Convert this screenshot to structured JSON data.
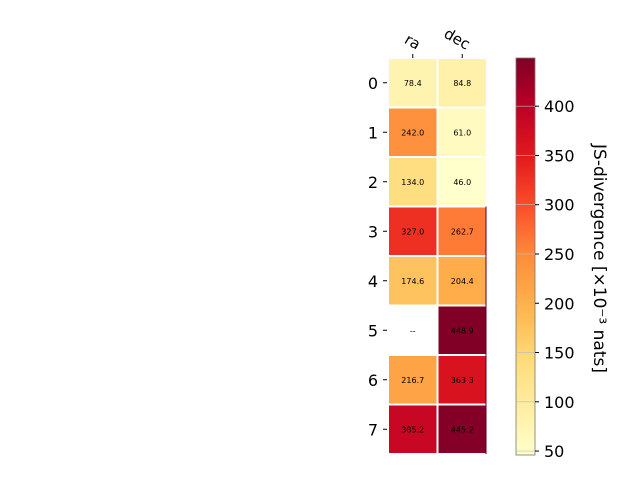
{
  "chart_data": {
    "type": "heatmap",
    "columns": [
      "ra",
      "dec"
    ],
    "rows": [
      "0",
      "1",
      "2",
      "3",
      "4",
      "5",
      "6",
      "7"
    ],
    "values": [
      [
        78.4,
        84.8
      ],
      [
        242.0,
        61.0
      ],
      [
        134.0,
        46.0
      ],
      [
        327.0,
        262.7
      ],
      [
        174.6,
        204.4
      ],
      [
        null,
        448.9
      ],
      [
        216.7,
        363.3
      ],
      [
        385.2,
        445.2
      ]
    ],
    "cell_labels": [
      [
        "78.4",
        "84.8"
      ],
      [
        "242.0",
        "61.0"
      ],
      [
        "134.0",
        "46.0"
      ],
      [
        "327.0",
        "262.7"
      ],
      [
        "174.6",
        "204.4"
      ],
      [
        "--",
        "448.9"
      ],
      [
        "216.7",
        "363.3"
      ],
      [
        "385.2",
        "445.2"
      ]
    ],
    "colorbar": {
      "label": "JS-divergence [×10⁻³ nats]",
      "range": [
        46.0,
        448.9
      ],
      "ticks": [
        50,
        100,
        150,
        200,
        250,
        300,
        350,
        400
      ],
      "colormap": "YlOrRd"
    },
    "grid": false
  }
}
